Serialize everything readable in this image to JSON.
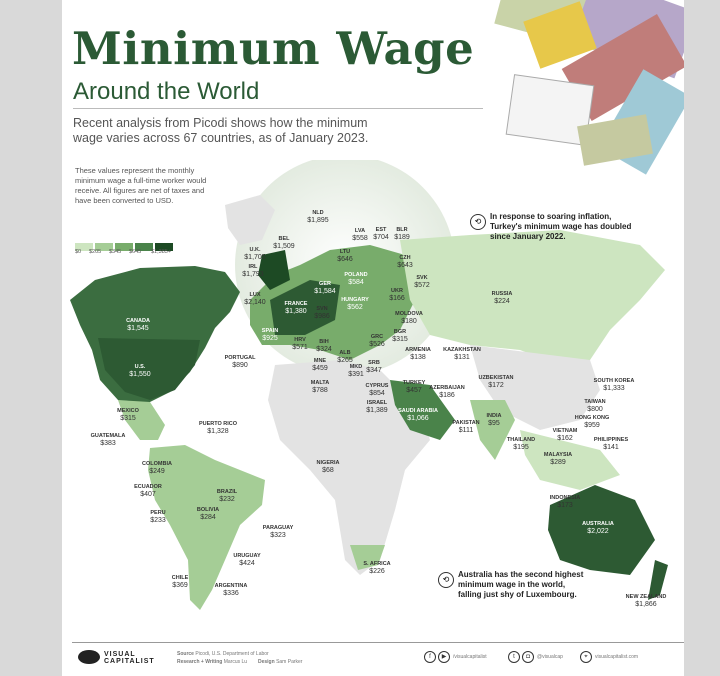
{
  "header": {
    "title": "Minimum Wage",
    "subtitle": "Around the World",
    "intro": "Recent analysis from Picodi shows how the minimum wage varies across 67 countries, as of January 2023.",
    "note": "These values represent the monthly minimum wage a full-time worker would receive. All figures are net of taxes and have been converted to USD."
  },
  "legend": {
    "labels": [
      "$0",
      "$205",
      "$345",
      "$645",
      "$1,385+"
    ],
    "colors": [
      "#cde5c0",
      "#a5cd96",
      "#78ac6b",
      "#4a834a",
      "#1d4a24"
    ]
  },
  "annotations": {
    "turkey": "In response to soaring inflation, Turkey's minimum wage has doubled since January 2022.",
    "australia": "Australia has the second highest minimum wage in the world, falling just shy of Luxembourg."
  },
  "countries": [
    {
      "name": "NLD",
      "value": "$1,895"
    },
    {
      "name": "BEL",
      "value": "$1,509"
    },
    {
      "name": "U.K.",
      "value": "$1,705"
    },
    {
      "name": "IRL",
      "value": "$1,793"
    },
    {
      "name": "LUX",
      "value": "$2,140"
    },
    {
      "name": "FRANCE",
      "value": "$1,380"
    },
    {
      "name": "GER",
      "value": "$1,584"
    },
    {
      "name": "POLAND",
      "value": "$584"
    },
    {
      "name": "LTU",
      "value": "$646"
    },
    {
      "name": "LVA",
      "value": "$558"
    },
    {
      "name": "EST",
      "value": "$704"
    },
    {
      "name": "BLR",
      "value": "$189"
    },
    {
      "name": "CZH",
      "value": "$643"
    },
    {
      "name": "SVK",
      "value": "$572"
    },
    {
      "name": "UKR",
      "value": "$166"
    },
    {
      "name": "MOLDOVA",
      "value": "$180"
    },
    {
      "name": "HUNGARY",
      "value": "$562"
    },
    {
      "name": "SVN",
      "value": "$986"
    },
    {
      "name": "SPAIN",
      "value": "$925"
    },
    {
      "name": "HRV",
      "value": "$571"
    },
    {
      "name": "BIH",
      "value": "$324"
    },
    {
      "name": "BGR",
      "value": "$315"
    },
    {
      "name": "GRC",
      "value": "$526"
    },
    {
      "name": "ALB",
      "value": "$265"
    },
    {
      "name": "MNE",
      "value": "$459"
    },
    {
      "name": "MKD",
      "value": "$391"
    },
    {
      "name": "SRB",
      "value": "$347"
    },
    {
      "name": "PORTUGAL",
      "value": "$890"
    },
    {
      "name": "MALTA",
      "value": "$788"
    },
    {
      "name": "CYPRUS",
      "value": "$854"
    },
    {
      "name": "ISRAEL",
      "value": "$1,389"
    },
    {
      "name": "TURKEY",
      "value": "$457"
    },
    {
      "name": "SAUDI ARABIA",
      "value": "$1,066"
    },
    {
      "name": "ARMENIA",
      "value": "$138"
    },
    {
      "name": "KAZAKHSTAN",
      "value": "$131"
    },
    {
      "name": "UZBEKISTAN",
      "value": "$172"
    },
    {
      "name": "AZERBAIJAN",
      "value": "$186"
    },
    {
      "name": "PAKISTAN",
      "value": "$111"
    },
    {
      "name": "INDIA",
      "value": "$95"
    },
    {
      "name": "RUSSIA",
      "value": "$224"
    },
    {
      "name": "SOUTH KOREA",
      "value": "$1,333"
    },
    {
      "name": "TAIWAN",
      "value": "$800"
    },
    {
      "name": "HONG KONG",
      "value": "$959"
    },
    {
      "name": "VIETNAM",
      "value": "$162"
    },
    {
      "name": "PHILIPPINES",
      "value": "$141"
    },
    {
      "name": "THAILAND",
      "value": "$195"
    },
    {
      "name": "MALAYSIA",
      "value": "$289"
    },
    {
      "name": "INDONESIA",
      "value": "$173"
    },
    {
      "name": "AUSTRALIA",
      "value": "$2,022"
    },
    {
      "name": "NEW ZEALAND",
      "value": "$1,866"
    },
    {
      "name": "CANADA",
      "value": "$1,545"
    },
    {
      "name": "U.S.",
      "value": "$1,550"
    },
    {
      "name": "MEXICO",
      "value": "$315"
    },
    {
      "name": "PUERTO RICO",
      "value": "$1,328"
    },
    {
      "name": "GUATEMALA",
      "value": "$383"
    },
    {
      "name": "COLOMBIA",
      "value": "$249"
    },
    {
      "name": "ECUADOR",
      "value": "$407"
    },
    {
      "name": "PERU",
      "value": "$233"
    },
    {
      "name": "BRAZIL",
      "value": "$232"
    },
    {
      "name": "BOLIVIA",
      "value": "$284"
    },
    {
      "name": "PARAGUAY",
      "value": "$323"
    },
    {
      "name": "URUGUAY",
      "value": "$424"
    },
    {
      "name": "CHILE",
      "value": "$369"
    },
    {
      "name": "ARGENTINA",
      "value": "$336"
    },
    {
      "name": "NIGERIA",
      "value": "$68"
    },
    {
      "name": "S. AFRICA",
      "value": "$226"
    }
  ],
  "footer": {
    "brand": "VISUAL CAPITALIST",
    "source_label": "Source",
    "source": "Picodi, U.S. Department of Labor",
    "research_label": "Research + Writing",
    "research": "Marcus Lu",
    "design_label": "Design",
    "design": "Sam Parker",
    "handle1": "/visualcapitalist",
    "handle2": "@visualcap",
    "site": "visualcapitalist.com"
  }
}
